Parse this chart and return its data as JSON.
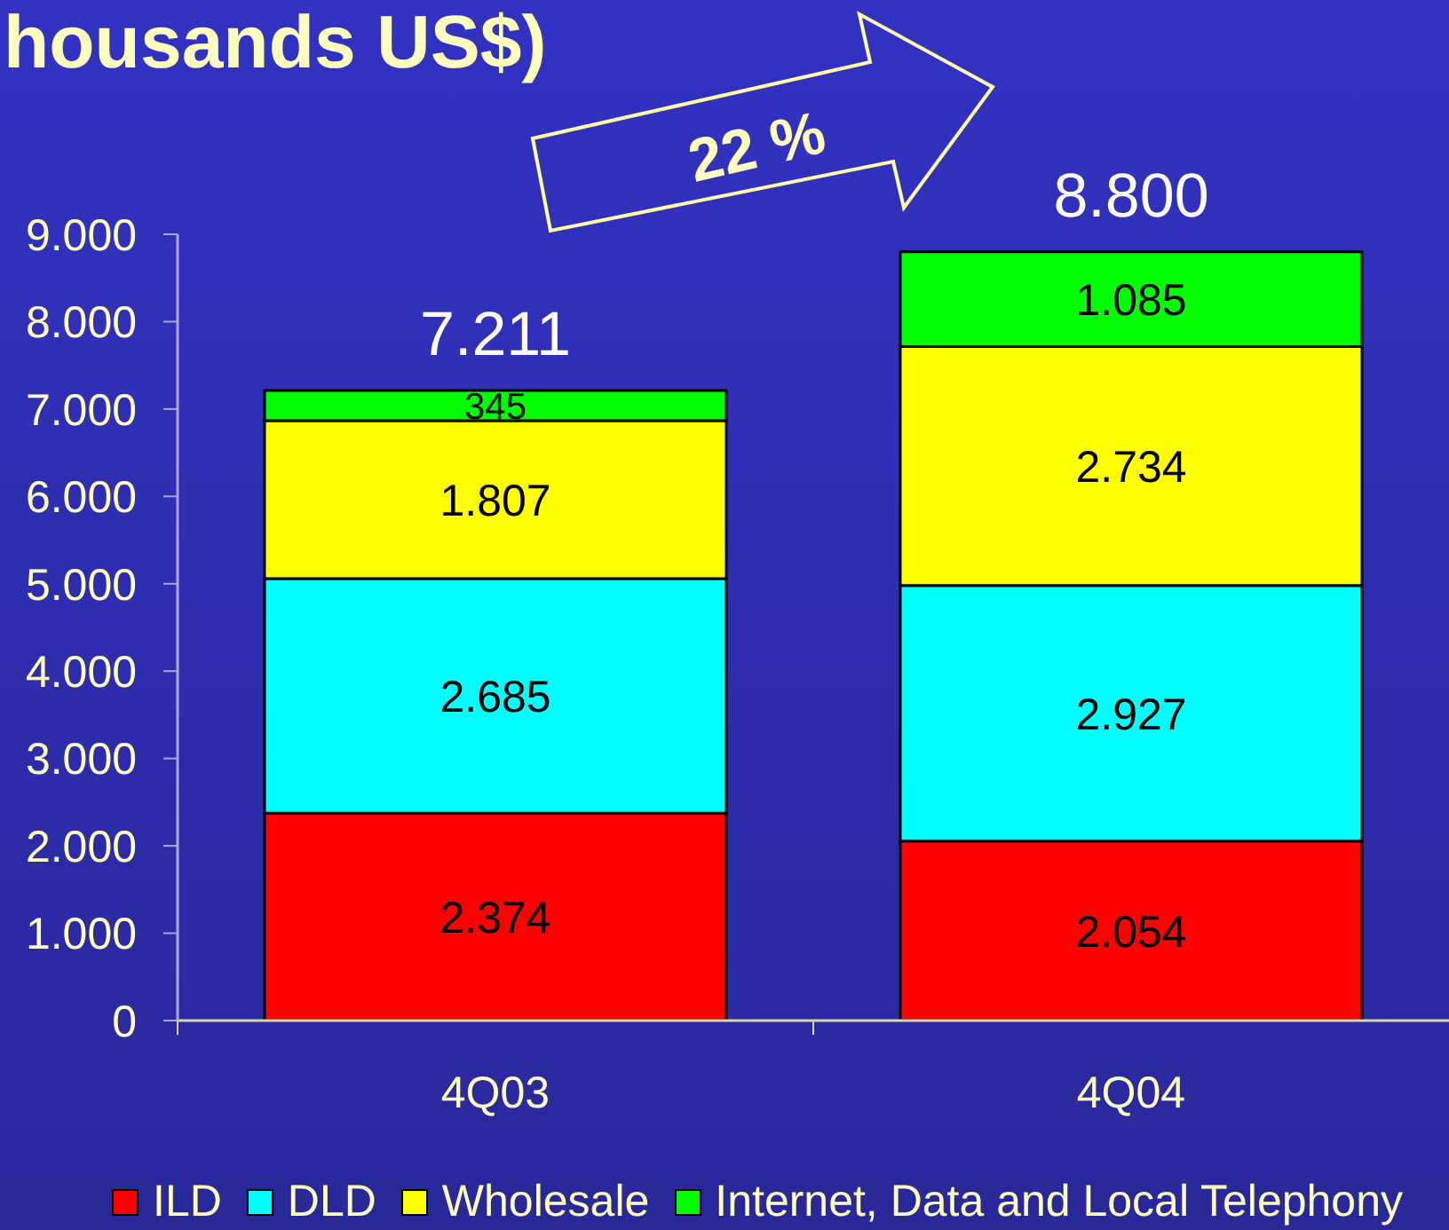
{
  "chart_data": {
    "type": "bar",
    "title": "housands US$)",
    "categories": [
      "4Q03",
      "4Q04"
    ],
    "series": [
      {
        "name": "ILD",
        "color": "#ff0000",
        "values": [
          2374,
          2054
        ],
        "value_labels": [
          "2.374",
          "2.054"
        ]
      },
      {
        "name": "DLD",
        "color": "#00ffff",
        "values": [
          2685,
          2927
        ],
        "value_labels": [
          "2.685",
          "2.927"
        ]
      },
      {
        "name": "Wholesale",
        "color": "#ffff00",
        "values": [
          1807,
          2734
        ],
        "value_labels": [
          "1.807",
          "2.734"
        ]
      },
      {
        "name": "Internet, Data and Local Telephony",
        "color": "#00ff00",
        "values": [
          345,
          1085
        ],
        "value_labels": [
          "345",
          "1.085"
        ]
      }
    ],
    "stacked": true,
    "totals": [
      "7.211",
      "8.800"
    ],
    "ylim": [
      0,
      9000
    ],
    "yticks": [
      0,
      {
        "value": 1000,
        "label": "1.000"
      },
      {
        "value": 2000,
        "label": "2.000"
      },
      {
        "value": 3000,
        "label": "3.000"
      },
      {
        "value": 4000,
        "label": "4.000"
      },
      {
        "value": 5000,
        "label": "5.000"
      },
      {
        "value": 6000,
        "label": "6.000"
      },
      {
        "value": 7000,
        "label": "7.000"
      },
      {
        "value": 8000,
        "label": "8.000"
      },
      {
        "value": 9000,
        "label": "9.000"
      }
    ],
    "legend": "bottom",
    "annotations": [
      "22 %"
    ]
  }
}
